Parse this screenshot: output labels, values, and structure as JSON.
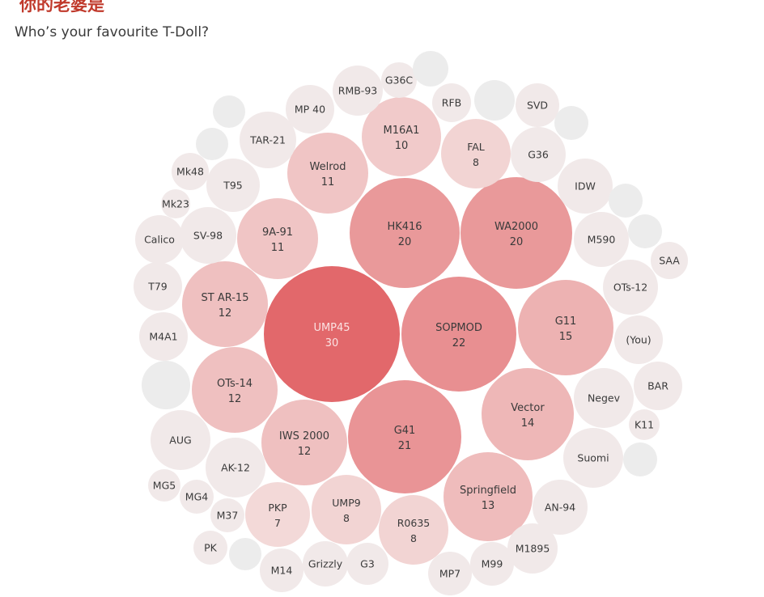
{
  "header": {
    "title": "你的老婆是",
    "subtitle": "Who’s your favourite T-Doll?"
  },
  "colors": {
    "max_fill": "#e2686b",
    "min_fill": "#f3d9d8",
    "empty_fill": "#ececec",
    "label_dark": "#3a3a3a",
    "label_light": "#fbe3e3",
    "title_red": "#c0392b"
  },
  "chart_data": {
    "type": "bubble",
    "title": "你的老婆是",
    "subtitle": "Who’s your favourite T-Doll?",
    "series": [
      {
        "label": "UMP45",
        "value": 30
      },
      {
        "label": "SOPMOD",
        "value": 22
      },
      {
        "label": "G41",
        "value": 21
      },
      {
        "label": "HK416",
        "value": 20
      },
      {
        "label": "WA2000",
        "value": 20
      },
      {
        "label": "G11",
        "value": 15
      },
      {
        "label": "Vector",
        "value": 14
      },
      {
        "label": "Springfield",
        "value": 13
      },
      {
        "label": "ST AR-15",
        "value": 12
      },
      {
        "label": "OTs-14",
        "value": 12
      },
      {
        "label": "IWS 2000",
        "value": 12
      },
      {
        "label": "Welrod",
        "value": 11
      },
      {
        "label": "9A-91",
        "value": 11
      },
      {
        "label": "M16A1",
        "value": 10
      },
      {
        "label": "FAL",
        "value": 8
      },
      {
        "label": "UMP9",
        "value": 8
      },
      {
        "label": "R0635",
        "value": 8
      },
      {
        "label": "PKP",
        "value": 7
      },
      {
        "label": "TAR-21"
      },
      {
        "label": "MP 40"
      },
      {
        "label": "RMB-93"
      },
      {
        "label": "G36C"
      },
      {
        "label": "RFB"
      },
      {
        "label": "SVD"
      },
      {
        "label": "G36"
      },
      {
        "label": "IDW"
      },
      {
        "label": "M590"
      },
      {
        "label": "SAA"
      },
      {
        "label": "OTs-12"
      },
      {
        "label": "(You)"
      },
      {
        "label": "BAR"
      },
      {
        "label": "Negev"
      },
      {
        "label": "K11"
      },
      {
        "label": "Suomi"
      },
      {
        "label": "AN-94"
      },
      {
        "label": "M1895"
      },
      {
        "label": "M99"
      },
      {
        "label": "MP7"
      },
      {
        "label": "G3"
      },
      {
        "label": "Grizzly"
      },
      {
        "label": "M14"
      },
      {
        "label": "PK"
      },
      {
        "label": "M37"
      },
      {
        "label": "MG4"
      },
      {
        "label": "MG5"
      },
      {
        "label": "AK-12"
      },
      {
        "label": "AUG"
      },
      {
        "label": "M4A1"
      },
      {
        "label": "T79"
      },
      {
        "label": "Calico"
      },
      {
        "label": "SV-98"
      },
      {
        "label": "Mk23"
      },
      {
        "label": "Mk48"
      },
      {
        "label": "T95"
      },
      {
        "label": ""
      },
      {
        "label": ""
      },
      {
        "label": ""
      },
      {
        "label": ""
      },
      {
        "label": ""
      },
      {
        "label": ""
      },
      {
        "label": ""
      },
      {
        "label": ""
      },
      {
        "label": ""
      },
      {
        "label": ""
      }
    ]
  }
}
